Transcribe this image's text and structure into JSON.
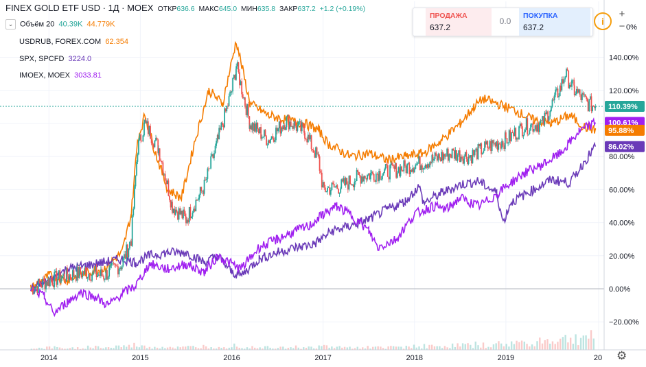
{
  "legend": {
    "title": "FINEX GOLD ETF USD · 1Д · MOEX",
    "open_label": "ОТКР",
    "open_value": "636.6",
    "high_label": "МАКС",
    "high_value": "645.0",
    "low_label": "МИН",
    "low_value": "635.8",
    "close_label": "ЗАКР",
    "close_value": "637.2",
    "change": "+1.2 (+0.19%)",
    "toggle_icon": "chevron-down-icon",
    "volume_label": "Объём 20",
    "volume_value": "40.39K",
    "volume_ma": "44.779K",
    "usdrub_label": "USDRUB, FOREX.COM",
    "usdrub_value": "62.354",
    "spx_label": "SPX, SPCFD",
    "spx_value": "3224.0",
    "imoex_label": "IMOEX, MOEX",
    "imoex_value": "3033.81"
  },
  "trade_panel": {
    "sell_label": "ПРОДАЖА",
    "sell_price": "637.2",
    "spread": "0.0",
    "buy_label": "ПОКУПКА",
    "buy_price": "637.2",
    "info_icon": "info-icon"
  },
  "controls": {
    "zoom_in": "+",
    "zoom_out": "−",
    "settings_icon": "gear-icon"
  },
  "colors": {
    "gold": "#26a69a",
    "gold_down": "#ef5350",
    "usdrub": "#f57c00",
    "spx": "#6a3ab8",
    "imoex": "#a020f0",
    "grid": "#f0f3fa",
    "text": "#131722"
  },
  "chart_data": {
    "type": "line",
    "title": "FINEX GOLD ETF USD · 1Д · MOEX",
    "y_unit": "%",
    "ylim": [
      -30,
      160
    ],
    "y_ticks": [
      140,
      120,
      100,
      80,
      60,
      40,
      20,
      0,
      -20
    ],
    "y_tick_labels": [
      "140.00%",
      "120.00%",
      "",
      "80.00%",
      "60.00%",
      "40.00%",
      "20.00%",
      "0.00%",
      "−20.00%"
    ],
    "partial_tick_label": "0%",
    "x_ticks": [
      "2014",
      "2015",
      "2016",
      "2017",
      "2018",
      "2019",
      "20"
    ],
    "x_range": [
      2013.75,
      2020.0
    ],
    "grid": true,
    "last_values": [
      {
        "series": "FINEX GOLD ETF USD",
        "label": "110.39%",
        "value": 110.39
      },
      {
        "series": "IMOEX, MOEX",
        "label": "100.61%",
        "value": 100.61
      },
      {
        "series": "USDRUB, FOREX.COM",
        "label": "95.88%",
        "value": 95.88
      },
      {
        "series": "SPX, SPCFD",
        "label": "86.02%",
        "value": 86.02
      }
    ],
    "series": [
      {
        "name": "FINEX GOLD ETF USD",
        "kind": "candles",
        "x": [
          2013.8,
          2014.0,
          2014.2,
          2014.4,
          2014.6,
          2014.8,
          2014.9,
          2014.97,
          2015.05,
          2015.2,
          2015.35,
          2015.5,
          2015.7,
          2015.85,
          2016.0,
          2016.05,
          2016.2,
          2016.4,
          2016.6,
          2016.8,
          2016.95,
          2017.0,
          2017.2,
          2017.4,
          2017.6,
          2017.8,
          2018.0,
          2018.2,
          2018.4,
          2018.6,
          2018.8,
          2019.0,
          2019.2,
          2019.4,
          2019.6,
          2019.65,
          2019.75,
          2019.9,
          2019.98
        ],
        "y": [
          0,
          5,
          8,
          10,
          8,
          15,
          30,
          85,
          100,
          85,
          50,
          42,
          62,
          90,
          120,
          135,
          100,
          90,
          102,
          95,
          78,
          60,
          62,
          68,
          70,
          72,
          75,
          78,
          82,
          80,
          86,
          90,
          98,
          100,
          122,
          130,
          120,
          112,
          110.4
        ]
      },
      {
        "name": "USDRUB, FOREX.COM",
        "x": [
          2013.8,
          2014.0,
          2014.2,
          2014.4,
          2014.6,
          2014.8,
          2014.9,
          2014.97,
          2015.05,
          2015.15,
          2015.3,
          2015.45,
          2015.6,
          2015.75,
          2015.9,
          2016.05,
          2016.2,
          2016.4,
          2016.6,
          2016.8,
          2016.95,
          2017.05,
          2017.3,
          2017.5,
          2017.7,
          2017.9,
          2018.1,
          2018.3,
          2018.5,
          2018.65,
          2018.75,
          2018.9,
          2019.1,
          2019.3,
          2019.5,
          2019.7,
          2019.85,
          2019.98
        ],
        "y": [
          0,
          8,
          5,
          10,
          12,
          22,
          45,
          90,
          105,
          85,
          60,
          55,
          90,
          120,
          112,
          150,
          112,
          105,
          102,
          100,
          96,
          88,
          80,
          82,
          78,
          80,
          82,
          90,
          100,
          110,
          115,
          112,
          108,
          102,
          100,
          105,
          98,
          95.9
        ]
      },
      {
        "name": "SPX, SPCFD",
        "x": [
          2013.8,
          2014.0,
          2014.2,
          2014.4,
          2014.6,
          2014.8,
          2014.95,
          2015.1,
          2015.3,
          2015.5,
          2015.7,
          2015.85,
          2016.0,
          2016.1,
          2016.3,
          2016.5,
          2016.7,
          2016.9,
          2017.1,
          2017.3,
          2017.5,
          2017.7,
          2017.9,
          2018.05,
          2018.1,
          2018.3,
          2018.5,
          2018.7,
          2018.9,
          2018.97,
          2019.05,
          2019.3,
          2019.5,
          2019.7,
          2019.9,
          2019.98
        ],
        "y": [
          0,
          5,
          12,
          14,
          16,
          18,
          16,
          20,
          22,
          22,
          16,
          20,
          10,
          8,
          18,
          22,
          25,
          27,
          35,
          38,
          42,
          48,
          53,
          62,
          52,
          58,
          63,
          65,
          58,
          40,
          52,
          60,
          66,
          64,
          80,
          86
        ]
      },
      {
        "name": "IMOEX, MOEX",
        "x": [
          2013.8,
          2013.95,
          2014.05,
          2014.2,
          2014.35,
          2014.5,
          2014.65,
          2014.8,
          2014.95,
          2015.1,
          2015.3,
          2015.5,
          2015.7,
          2015.85,
          2016.0,
          2016.1,
          2016.3,
          2016.5,
          2016.7,
          2016.85,
          2017.0,
          2017.15,
          2017.3,
          2017.5,
          2017.6,
          2017.8,
          2018.0,
          2018.2,
          2018.35,
          2018.5,
          2018.7,
          2018.85,
          2019.0,
          2019.2,
          2019.4,
          2019.6,
          2019.8,
          2019.98
        ],
        "y": [
          0,
          -5,
          -15,
          -8,
          -2,
          -5,
          -10,
          -3,
          2,
          15,
          12,
          15,
          10,
          20,
          15,
          12,
          25,
          30,
          35,
          38,
          45,
          50,
          45,
          35,
          25,
          30,
          45,
          50,
          48,
          55,
          50,
          55,
          62,
          70,
          75,
          82,
          95,
          100.6
        ]
      },
      {
        "name": "Объём 20",
        "kind": "volume",
        "levels": [
          3,
          4,
          3,
          4,
          5,
          4,
          6,
          8,
          5,
          5,
          4,
          5,
          6,
          7,
          8,
          6,
          5,
          6,
          5,
          4,
          6,
          5,
          4,
          5,
          4,
          5,
          6,
          7,
          6,
          7,
          8,
          9,
          8,
          10,
          12,
          15,
          16,
          18,
          20,
          24
        ]
      }
    ]
  }
}
